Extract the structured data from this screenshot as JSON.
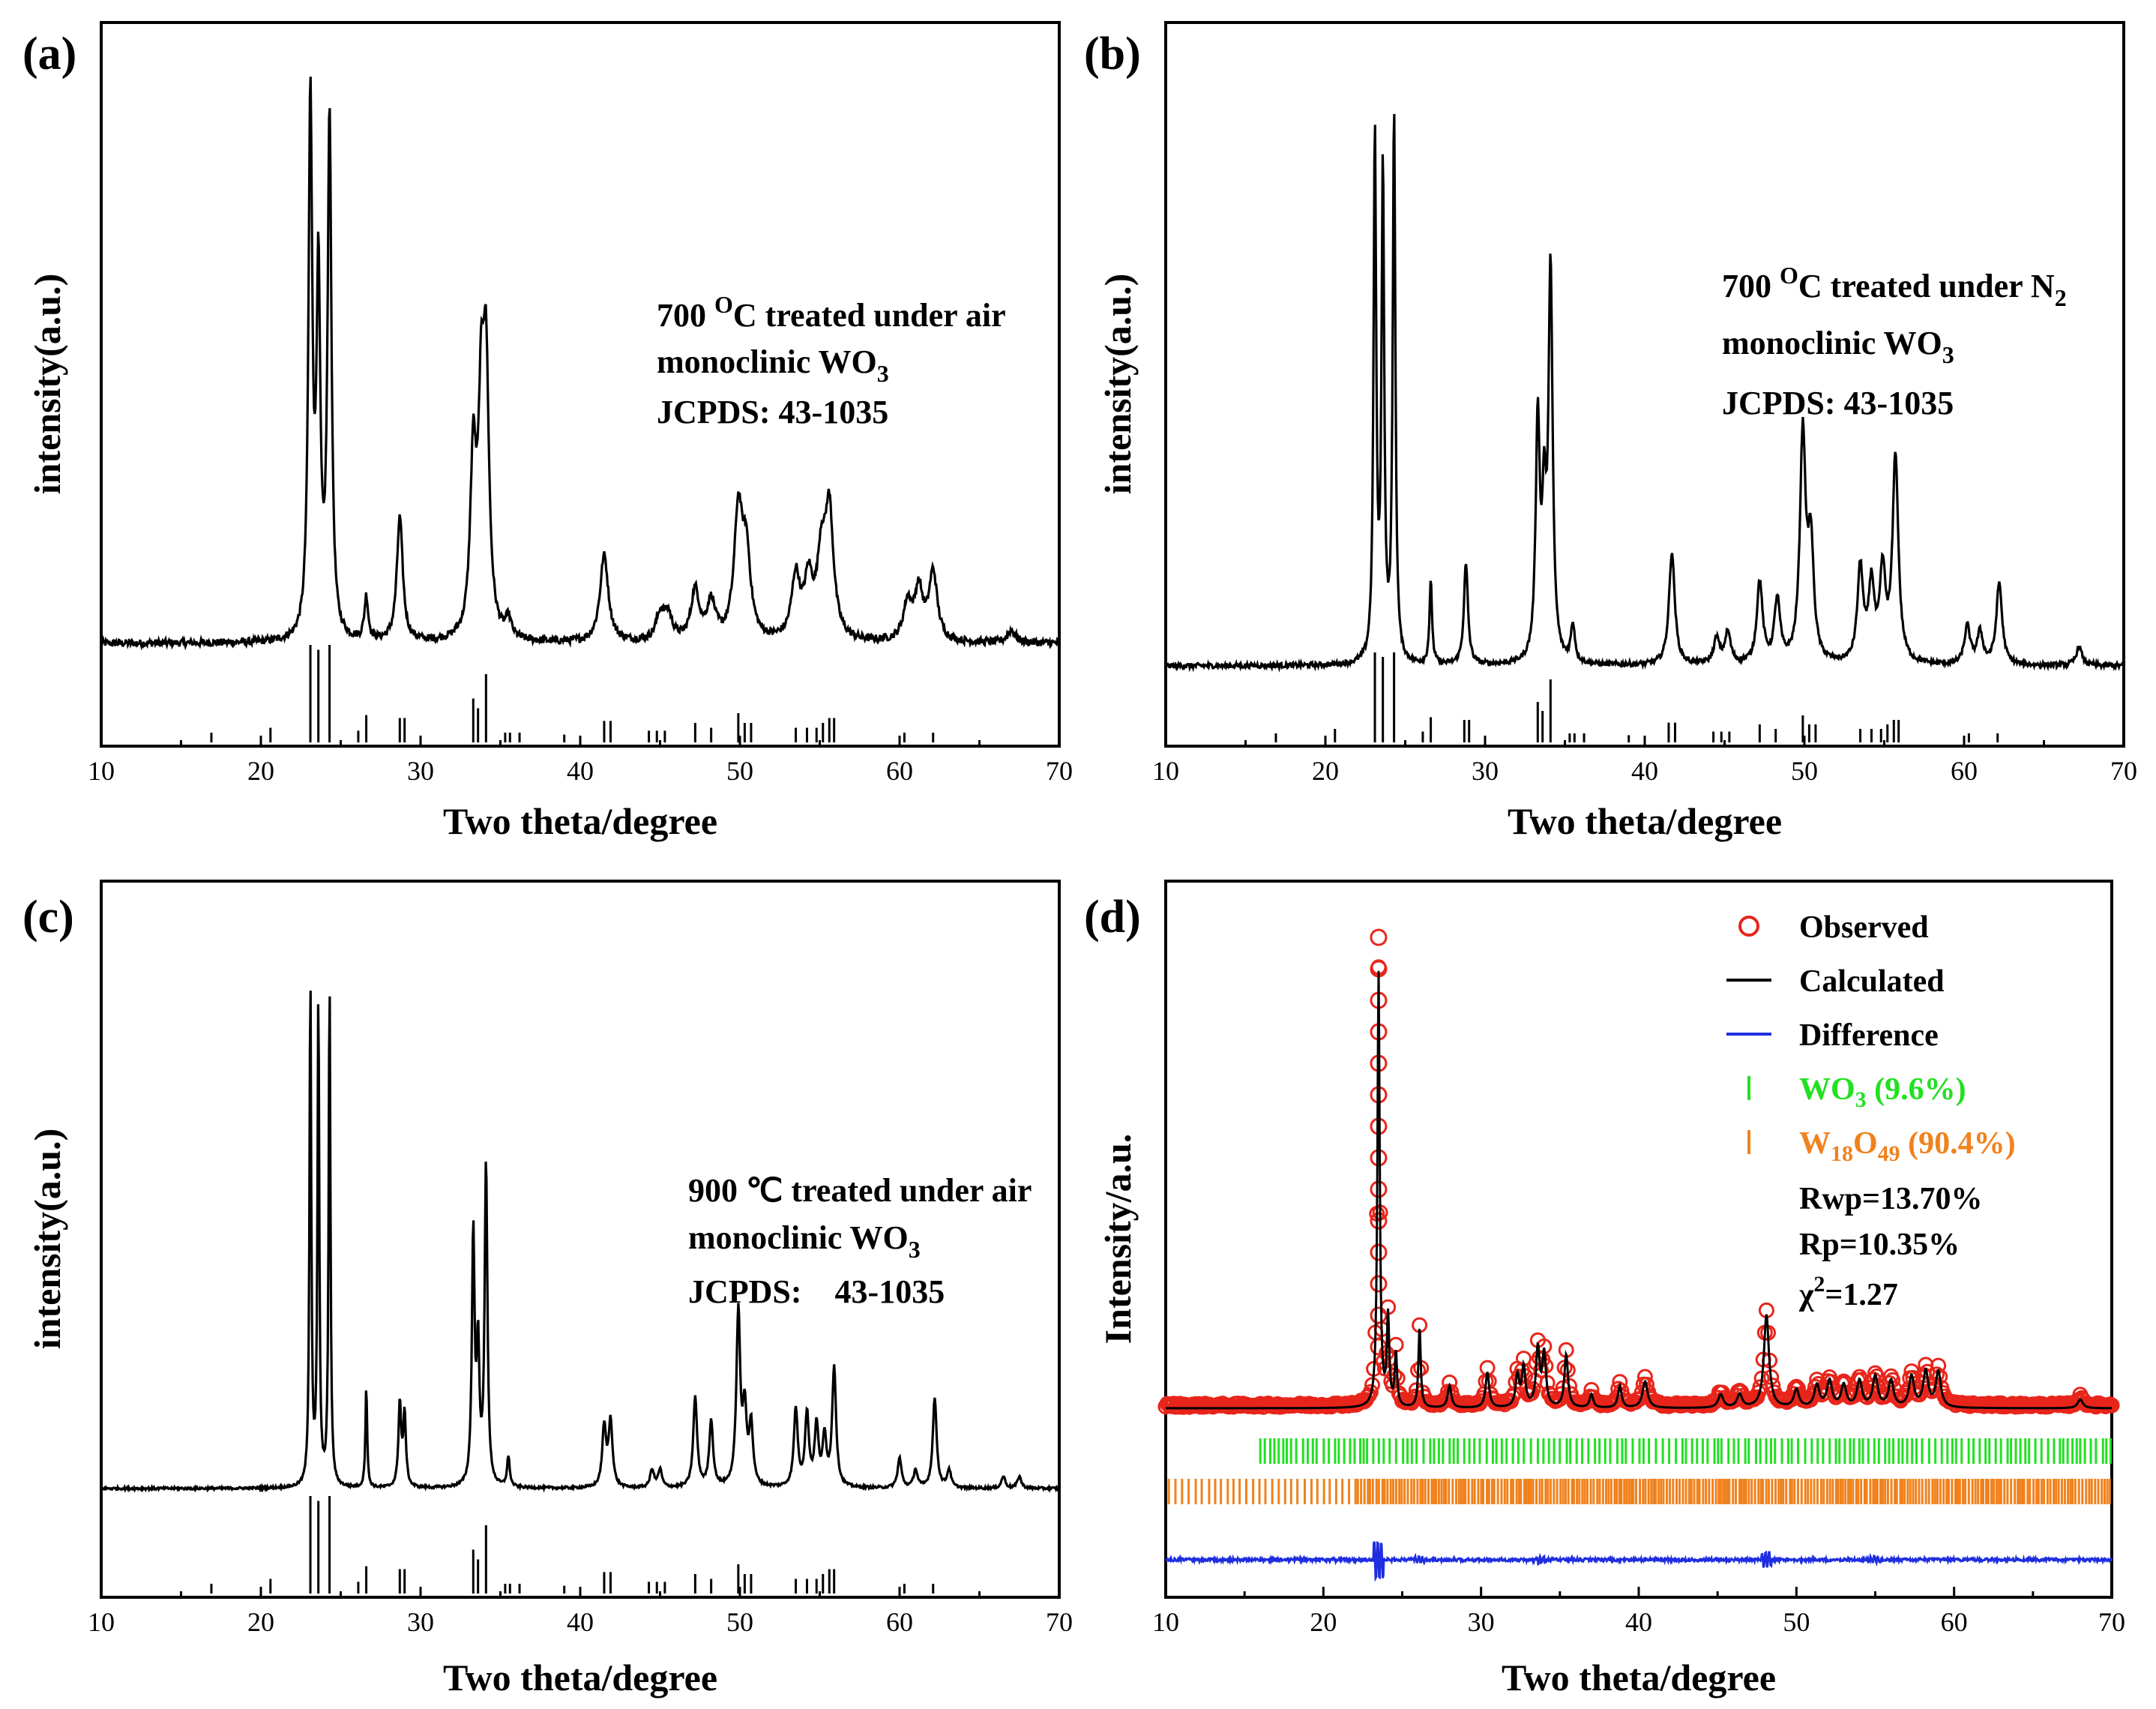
{
  "colors": {
    "axis": "#000000",
    "observed": "#e8251a",
    "calculated": "#000000",
    "difference": "#1e2de0",
    "wo3_ticks": "#22e022",
    "w18o49_ticks": "#f0821e"
  },
  "chart_data": [
    {
      "type": "line",
      "panel_label": "(a)",
      "xlabel": "Two theta/degree",
      "ylabel": "intensity(a.u.)",
      "xlim": [
        10,
        70
      ],
      "xticks": [
        "10",
        "20",
        "30",
        "40",
        "50",
        "60",
        "70"
      ],
      "yticks": [],
      "annotation": {
        "line1_pre": "700 ",
        "line1_sup": "O",
        "line1_post": "C treated under air",
        "line2_pre": "monoclinic WO",
        "line2_sub": "3",
        "line3": "JCPDS: 43-1035"
      },
      "baseline": 0.06,
      "noise": 0.006,
      "width_scale": 1.3,
      "peaks": [
        [
          23.1,
          0.86
        ],
        [
          23.6,
          0.56
        ],
        [
          24.3,
          0.84
        ],
        [
          26.6,
          0.07
        ],
        [
          28.7,
          0.2
        ],
        [
          33.3,
          0.28
        ],
        [
          33.8,
          0.32
        ],
        [
          34.1,
          0.4
        ],
        [
          35.5,
          0.03
        ],
        [
          41.5,
          0.14
        ],
        [
          45,
          0.04
        ],
        [
          45.5,
          0.04
        ],
        [
          47.2,
          0.08
        ],
        [
          48.2,
          0.06
        ],
        [
          49.9,
          0.2
        ],
        [
          50.4,
          0.13
        ],
        [
          53.5,
          0.1
        ],
        [
          54.3,
          0.09
        ],
        [
          55.1,
          0.12
        ],
        [
          55.6,
          0.2
        ],
        [
          60.5,
          0.06
        ],
        [
          61.2,
          0.08
        ],
        [
          62.1,
          0.11
        ],
        [
          67,
          0.02
        ]
      ],
      "ref_ticks": [
        [
          16.9,
          0.1
        ],
        [
          20.6,
          0.15
        ],
        [
          23.1,
          1
        ],
        [
          23.6,
          0.95
        ],
        [
          24.3,
          1
        ],
        [
          26.1,
          0.12
        ],
        [
          26.6,
          0.28
        ],
        [
          28.7,
          0.25
        ],
        [
          29,
          0.25
        ],
        [
          33.3,
          0.45
        ],
        [
          33.6,
          0.35
        ],
        [
          34.1,
          0.7
        ],
        [
          35.3,
          0.1
        ],
        [
          35.6,
          0.1
        ],
        [
          36.2,
          0.1
        ],
        [
          39,
          0.08
        ],
        [
          41.5,
          0.22
        ],
        [
          41.9,
          0.22
        ],
        [
          44.3,
          0.12
        ],
        [
          44.8,
          0.12
        ],
        [
          45.3,
          0.12
        ],
        [
          47.2,
          0.2
        ],
        [
          48.2,
          0.15
        ],
        [
          49.9,
          0.3
        ],
        [
          50.3,
          0.2
        ],
        [
          50.7,
          0.2
        ],
        [
          53.5,
          0.15
        ],
        [
          54.2,
          0.15
        ],
        [
          54.8,
          0.15
        ],
        [
          55.2,
          0.2
        ],
        [
          55.6,
          0.25
        ],
        [
          55.9,
          0.25
        ],
        [
          60.3,
          0.1
        ],
        [
          62.1,
          0.1
        ]
      ]
    },
    {
      "type": "line",
      "panel_label": "(b)",
      "xlabel": "Two theta/degree",
      "ylabel": "intensity(a.u.)",
      "xlim": [
        10,
        70
      ],
      "xticks": [
        "10",
        "20",
        "30",
        "40",
        "50",
        "60",
        "70"
      ],
      "yticks": [],
      "annotation": {
        "line1_pre": "700 ",
        "line1_sup": "O",
        "line1_post": "C treated under N",
        "line1_sub": "2",
        "line2_pre": "monoclinic WO",
        "line2_sub": "3",
        "line3": "JCPDS: 43-1035"
      },
      "baseline": 0.05,
      "noise": 0.004,
      "width_scale": 0.9,
      "peaks": [
        [
          23.1,
          0.84
        ],
        [
          23.6,
          0.78
        ],
        [
          24.3,
          0.88
        ],
        [
          26.6,
          0.13
        ],
        [
          28.8,
          0.16
        ],
        [
          33.3,
          0.38
        ],
        [
          33.7,
          0.22
        ],
        [
          34.1,
          0.62
        ],
        [
          35.5,
          0.06
        ],
        [
          41.7,
          0.18
        ],
        [
          44.5,
          0.04
        ],
        [
          45.2,
          0.05
        ],
        [
          47.2,
          0.13
        ],
        [
          48.3,
          0.1
        ],
        [
          49.9,
          0.36
        ],
        [
          50.4,
          0.18
        ],
        [
          53.5,
          0.15
        ],
        [
          54.2,
          0.12
        ],
        [
          54.9,
          0.14
        ],
        [
          55.7,
          0.33
        ],
        [
          60.2,
          0.06
        ],
        [
          61,
          0.05
        ],
        [
          62.2,
          0.13
        ],
        [
          67.2,
          0.03
        ]
      ],
      "ref_ticks": [
        [
          16.9,
          0.1
        ],
        [
          20.6,
          0.15
        ],
        [
          23.1,
          1
        ],
        [
          23.6,
          0.95
        ],
        [
          24.3,
          1
        ],
        [
          26.1,
          0.12
        ],
        [
          26.6,
          0.28
        ],
        [
          28.7,
          0.25
        ],
        [
          29,
          0.25
        ],
        [
          33.3,
          0.45
        ],
        [
          33.6,
          0.35
        ],
        [
          34.1,
          0.7
        ],
        [
          35.3,
          0.1
        ],
        [
          35.6,
          0.1
        ],
        [
          36.2,
          0.1
        ],
        [
          39,
          0.08
        ],
        [
          41.5,
          0.22
        ],
        [
          41.9,
          0.22
        ],
        [
          44.3,
          0.12
        ],
        [
          44.8,
          0.12
        ],
        [
          45.3,
          0.12
        ],
        [
          47.2,
          0.2
        ],
        [
          48.2,
          0.15
        ],
        [
          49.9,
          0.3
        ],
        [
          50.3,
          0.2
        ],
        [
          50.7,
          0.2
        ],
        [
          53.5,
          0.15
        ],
        [
          54.2,
          0.15
        ],
        [
          54.8,
          0.15
        ],
        [
          55.2,
          0.2
        ],
        [
          55.6,
          0.25
        ],
        [
          55.9,
          0.25
        ],
        [
          60.3,
          0.1
        ],
        [
          62.1,
          0.1
        ]
      ]
    },
    {
      "type": "line",
      "panel_label": "(c)",
      "xlabel": "Two theta/degree",
      "ylabel": "intensity(a.u.)",
      "xlim": [
        10,
        70
      ],
      "xticks": [
        "10",
        "20",
        "30",
        "40",
        "50",
        "60",
        "70"
      ],
      "yticks": [],
      "annotation": {
        "line1_pre": "900 ℃ treated under air",
        "line2_pre": "monoclinic WO",
        "line2_sub": "3",
        "line3": "JCPDS:    43-1035"
      },
      "baseline": 0.04,
      "noise": 0.002,
      "width_scale": 0.6,
      "peaks": [
        [
          23.1,
          0.85
        ],
        [
          23.6,
          0.82
        ],
        [
          24.3,
          0.85
        ],
        [
          26.6,
          0.17
        ],
        [
          28.7,
          0.14
        ],
        [
          29,
          0.12
        ],
        [
          33.3,
          0.42
        ],
        [
          33.6,
          0.22
        ],
        [
          34.1,
          0.54
        ],
        [
          35.5,
          0.05
        ],
        [
          41.5,
          0.1
        ],
        [
          41.9,
          0.11
        ],
        [
          44.5,
          0.03
        ],
        [
          45,
          0.03
        ],
        [
          47.2,
          0.15
        ],
        [
          48.2,
          0.11
        ],
        [
          49.9,
          0.29
        ],
        [
          50.3,
          0.12
        ],
        [
          50.7,
          0.1
        ],
        [
          53.5,
          0.13
        ],
        [
          54.2,
          0.12
        ],
        [
          54.8,
          0.1
        ],
        [
          55.3,
          0.08
        ],
        [
          55.9,
          0.2
        ],
        [
          60,
          0.05
        ],
        [
          61,
          0.03
        ],
        [
          62.2,
          0.15
        ],
        [
          63.1,
          0.03
        ],
        [
          66.5,
          0.02
        ],
        [
          67.5,
          0.02
        ]
      ],
      "ref_ticks": [
        [
          16.9,
          0.1
        ],
        [
          20.6,
          0.15
        ],
        [
          23.1,
          1
        ],
        [
          23.6,
          0.95
        ],
        [
          24.3,
          1
        ],
        [
          26.1,
          0.12
        ],
        [
          26.6,
          0.28
        ],
        [
          28.7,
          0.25
        ],
        [
          29,
          0.25
        ],
        [
          33.3,
          0.45
        ],
        [
          33.6,
          0.35
        ],
        [
          34.1,
          0.7
        ],
        [
          35.3,
          0.1
        ],
        [
          35.6,
          0.1
        ],
        [
          36.2,
          0.1
        ],
        [
          39,
          0.08
        ],
        [
          41.5,
          0.22
        ],
        [
          41.9,
          0.22
        ],
        [
          44.3,
          0.12
        ],
        [
          44.8,
          0.12
        ],
        [
          45.3,
          0.12
        ],
        [
          47.2,
          0.2
        ],
        [
          48.2,
          0.15
        ],
        [
          49.9,
          0.3
        ],
        [
          50.3,
          0.2
        ],
        [
          50.7,
          0.2
        ],
        [
          53.5,
          0.15
        ],
        [
          54.2,
          0.15
        ],
        [
          54.8,
          0.15
        ],
        [
          55.2,
          0.2
        ],
        [
          55.6,
          0.25
        ],
        [
          55.9,
          0.25
        ],
        [
          60.3,
          0.1
        ],
        [
          62.1,
          0.1
        ]
      ]
    },
    {
      "type": "line",
      "panel_label": "(d)",
      "xlabel": "Two theta/degree",
      "ylabel": "Intensity/a.u.",
      "xlim": [
        10,
        70
      ],
      "xticks": [
        "10",
        "20",
        "30",
        "40",
        "50",
        "60",
        "70"
      ],
      "yticks": [],
      "series": [
        {
          "name": "Observed"
        },
        {
          "name": "Calculated"
        },
        {
          "name": "Difference"
        }
      ],
      "phases": [
        {
          "name": "WO",
          "sub": "3",
          "post": " (9.6%)",
          "tick_range": [
            16,
            70
          ]
        },
        {
          "name": "W",
          "sub": "18",
          "mid": "O",
          "sub2": "49",
          "post": " (90.4%)",
          "tick_range": [
            10,
            70
          ]
        }
      ],
      "fit_stats": [
        "Rwp=13.70%",
        "Rp=10.35%"
      ],
      "chi2": {
        "pre": "χ",
        "sup": "2",
        "post": "=1.27"
      },
      "baseline": 0.05,
      "peaks": [
        [
          23.5,
          0.98
        ],
        [
          24.1,
          0.2
        ],
        [
          24.6,
          0.12
        ],
        [
          26.1,
          0.18
        ],
        [
          28,
          0.05
        ],
        [
          30.4,
          0.08
        ],
        [
          32.3,
          0.07
        ],
        [
          32.7,
          0.09
        ],
        [
          33.6,
          0.13
        ],
        [
          34,
          0.12
        ],
        [
          35.4,
          0.12
        ],
        [
          37,
          0.03
        ],
        [
          38.8,
          0.05
        ],
        [
          40.4,
          0.06
        ],
        [
          45.2,
          0.03
        ],
        [
          46.4,
          0.03
        ],
        [
          48.1,
          0.21
        ],
        [
          50,
          0.04
        ],
        [
          51.3,
          0.05
        ],
        [
          52.1,
          0.06
        ],
        [
          53,
          0.05
        ],
        [
          54,
          0.06
        ],
        [
          55,
          0.07
        ],
        [
          56,
          0.06
        ],
        [
          57.3,
          0.07
        ],
        [
          58.2,
          0.08
        ],
        [
          59,
          0.08
        ],
        [
          68,
          0.02
        ]
      ]
    }
  ]
}
